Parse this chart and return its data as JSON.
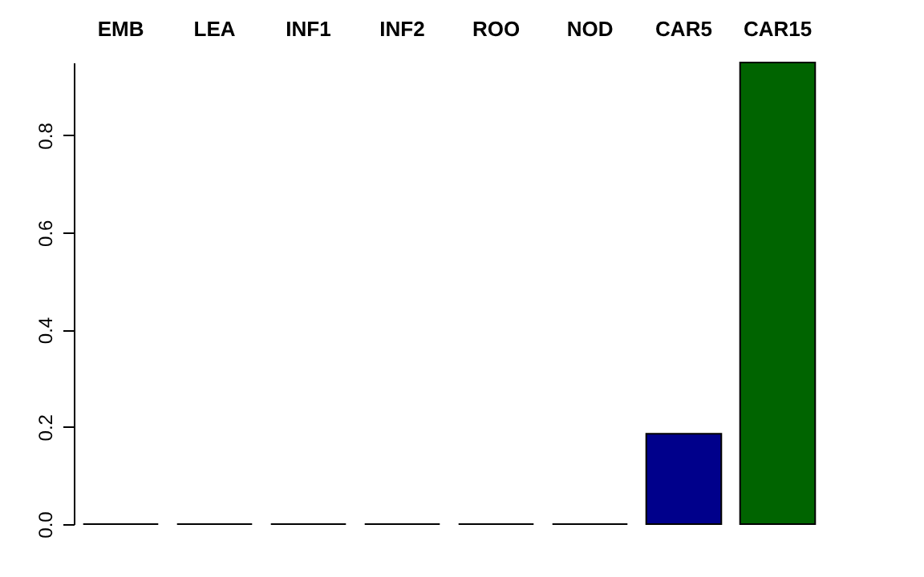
{
  "chart_data": {
    "type": "bar",
    "categories": [
      "EMB",
      "LEA",
      "INF1",
      "INF2",
      "ROO",
      "NOD",
      "CAR5",
      "CAR15"
    ],
    "values": [
      0,
      0,
      0,
      0,
      0,
      0,
      0.186,
      0.95
    ],
    "colors": [
      "#000000",
      "#000000",
      "#000000",
      "#000000",
      "#000000",
      "#000000",
      "#00008b",
      "#006400"
    ],
    "ylim": [
      0,
      0.95
    ],
    "yticks": [
      {
        "value": 0,
        "label": "0.0"
      },
      0.2,
      0.4,
      0.6,
      0.8
    ],
    "grid": false
  }
}
